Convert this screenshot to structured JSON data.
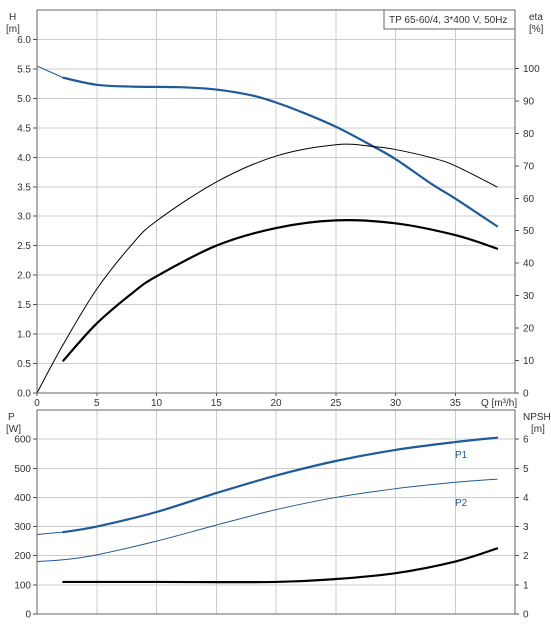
{
  "model_label": "TP 65-60/4, 3*400 V, 50Hz",
  "colors": {
    "blue": "#1f5a9a",
    "black": "#000000",
    "grid": "#cccccc"
  },
  "chart_data": [
    {
      "type": "line",
      "name": "head-efficiency",
      "xlabel": "Q [m³/h]",
      "xlim": [
        0,
        40
      ],
      "x_ticks": [
        0,
        5,
        10,
        15,
        20,
        25,
        30,
        35
      ],
      "left_axis": {
        "label_top": "H",
        "label_unit": "[m]",
        "ylim": [
          0,
          6.5
        ],
        "ticks": [
          "0.0",
          "0.5",
          "1.0",
          "1.5",
          "2.0",
          "2.5",
          "3.0",
          "3.5",
          "4.0",
          "4.5",
          "5.0",
          "5.5",
          "6.0"
        ]
      },
      "right_axis": {
        "label_top": "eta",
        "label_unit": "[%]",
        "ylim": [
          0,
          118
        ],
        "ticks": [
          0,
          10,
          20,
          30,
          40,
          50,
          60,
          70,
          80,
          90,
          100
        ]
      },
      "series": [
        {
          "axis": "left",
          "color": "#1f5a9a",
          "width": 2.2,
          "thin_start": true,
          "x": [
            0,
            2.2,
            5,
            8,
            12,
            15,
            18,
            20,
            22,
            25,
            28,
            30,
            33,
            35,
            38.5
          ],
          "y": [
            5.55,
            5.35,
            5.23,
            5.2,
            5.19,
            5.15,
            5.05,
            4.93,
            4.78,
            4.52,
            4.2,
            3.97,
            3.55,
            3.3,
            2.83
          ]
        },
        {
          "axis": "right",
          "color": "#000000",
          "width": 1.0,
          "thin_start": false,
          "x": [
            0,
            2.2,
            5,
            8,
            10,
            15,
            20,
            25,
            28,
            30,
            33,
            35,
            38.5
          ],
          "y": [
            0,
            15,
            32,
            46,
            53,
            65,
            73,
            76.5,
            76,
            75,
            72.5,
            70,
            63.5
          ]
        },
        {
          "axis": "left",
          "color": "#000000",
          "width": 2.2,
          "thin_start": false,
          "x": [
            2.2,
            5,
            8,
            10,
            15,
            20,
            25,
            30,
            35,
            38.5
          ],
          "y": [
            0.55,
            1.18,
            1.7,
            1.98,
            2.5,
            2.8,
            2.93,
            2.88,
            2.68,
            2.45
          ]
        }
      ]
    },
    {
      "type": "line",
      "name": "power-npsh",
      "xlim": [
        0,
        40
      ],
      "left_axis": {
        "label_top": "P",
        "label_unit": "[W]",
        "ylim": [
          0,
          700
        ],
        "ticks": [
          0,
          100,
          200,
          300,
          400,
          500,
          600
        ]
      },
      "right_axis": {
        "label_top": "NPSH",
        "label_unit": "[m]",
        "ylim": [
          0,
          7
        ],
        "ticks": [
          0,
          1,
          2,
          3,
          4,
          5,
          6
        ]
      },
      "series": [
        {
          "label": "P1",
          "axis": "left",
          "color": "#1f5a9a",
          "width": 2.2,
          "thin_start": true,
          "x": [
            0,
            2.2,
            5,
            10,
            15,
            20,
            25,
            30,
            35,
            38.5
          ],
          "y": [
            273,
            281,
            300,
            350,
            415,
            475,
            525,
            563,
            590,
            605
          ]
        },
        {
          "label": "P2",
          "axis": "left",
          "color": "#1f5a9a",
          "width": 1.0,
          "thin_start": false,
          "x": [
            0,
            2.2,
            5,
            10,
            15,
            20,
            25,
            30,
            35,
            38.5
          ],
          "y": [
            180,
            186,
            203,
            250,
            305,
            358,
            400,
            430,
            452,
            463
          ]
        },
        {
          "axis": "right",
          "color": "#000000",
          "width": 2.2,
          "thin_start": false,
          "x": [
            2.2,
            10,
            20,
            25,
            30,
            35,
            38.5
          ],
          "y": [
            1.1,
            1.1,
            1.1,
            1.2,
            1.4,
            1.8,
            2.25
          ]
        }
      ]
    }
  ]
}
